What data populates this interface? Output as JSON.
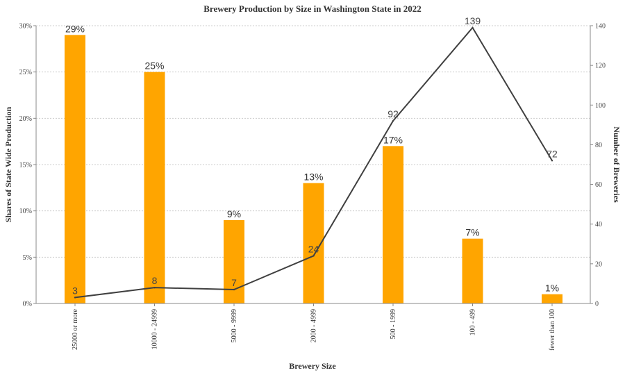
{
  "chart_data": {
    "type": "bar",
    "title": "Brewery Production by Size in Washington State in 2022",
    "xlabel": "Brewery Size",
    "ylabel": "Shares of State Wide Production",
    "y2label": "Number of Breweries",
    "categories": [
      "25000 or more",
      "10000 - 24999",
      "5000 - 9999",
      "2000 - 4999",
      "500 - 1999",
      "100 - 499",
      "fewer than 100"
    ],
    "series": [
      {
        "type": "bar",
        "axis": "left",
        "values": [
          29,
          25,
          9,
          13,
          17,
          7,
          1
        ],
        "labels": [
          "29%",
          "25%",
          "9%",
          "13%",
          "17%",
          "7%",
          "1%"
        ],
        "color": "#FFA500"
      },
      {
        "type": "line",
        "axis": "right",
        "values": [
          3,
          8,
          7,
          24,
          92,
          139,
          72
        ],
        "labels": [
          "3",
          "8",
          "7",
          "24",
          "92",
          "139",
          "72"
        ],
        "color": "#404040"
      }
    ],
    "ylim": [
      0,
      30
    ],
    "y2lim": [
      0,
      140
    ],
    "yticks": [
      "0%",
      "5%",
      "10%",
      "15%",
      "20%",
      "25%",
      "30%"
    ],
    "y2ticks": [
      "0",
      "20",
      "40",
      "60",
      "80",
      "100",
      "120",
      "140"
    ],
    "grid": true,
    "legend": "none"
  }
}
